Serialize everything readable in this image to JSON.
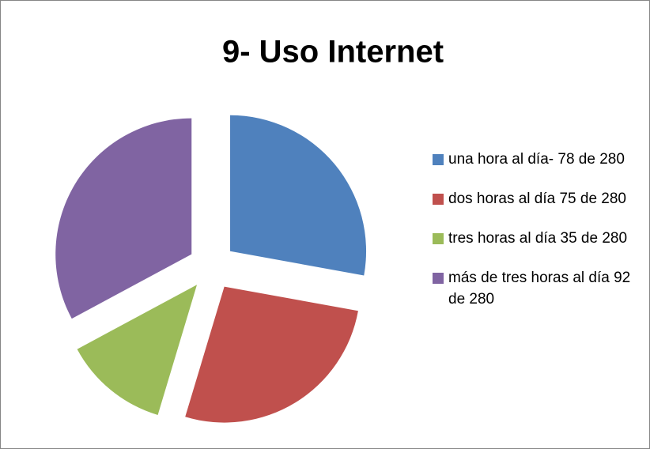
{
  "chart_data": {
    "type": "pie",
    "title": "9- Uso Internet",
    "categories": [
      "una hora al día- 78 de 280",
      "dos horas al día 75 de 280",
      "tres horas al día 35 de 280",
      "más de tres horas al día 92 de 280"
    ],
    "values": [
      78,
      75,
      35,
      92
    ],
    "colors": [
      "#4f81bd",
      "#c0504d",
      "#9bbb59",
      "#8064a2"
    ],
    "legend": "right",
    "exploded": true
  }
}
